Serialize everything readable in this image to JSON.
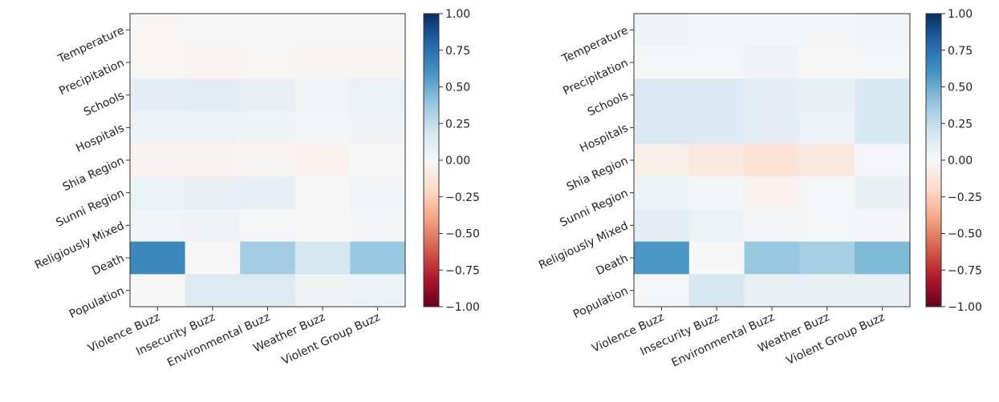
{
  "chart_data": [
    {
      "type": "heatmap",
      "title": "",
      "xlabel": "",
      "ylabel": "",
      "x_categories": [
        "Violence Buzz",
        "Insecurity Buzz",
        "Environmental Buzz",
        "Weather Buzz",
        "Violent Group Buzz"
      ],
      "y_categories": [
        "Temperature",
        "Precipitation",
        "Schools",
        "Hospitals",
        "Shia Region",
        "Sunni Region",
        "Religiously Mixed",
        "Death",
        "Population"
      ],
      "values": [
        [
          -0.01,
          0.0,
          0.0,
          0.0,
          0.0
        ],
        [
          -0.01,
          -0.02,
          -0.01,
          -0.02,
          -0.02
        ],
        [
          0.1,
          0.11,
          0.08,
          0.03,
          0.07
        ],
        [
          0.06,
          0.06,
          0.05,
          0.02,
          0.04
        ],
        [
          -0.03,
          -0.03,
          -0.02,
          -0.04,
          0.0
        ],
        [
          0.07,
          0.08,
          0.09,
          0.0,
          0.03
        ],
        [
          0.03,
          0.04,
          0.01,
          0.0,
          0.02
        ],
        [
          0.65,
          0.0,
          0.35,
          0.18,
          0.38
        ],
        [
          0.0,
          0.14,
          0.14,
          0.04,
          0.06
        ]
      ],
      "colorscale": "RdBu",
      "vmin": -1.0,
      "vmax": 1.0,
      "colorbar_ticks": [
        "1.00",
        "0.75",
        "0.50",
        "0.25",
        "0.00",
        "−0.25",
        "−0.50",
        "−0.75",
        "−1.00"
      ],
      "colorbar_values": [
        1.0,
        0.75,
        0.5,
        0.25,
        0.0,
        -0.25,
        -0.5,
        -0.75,
        -1.0
      ]
    },
    {
      "type": "heatmap",
      "title": "",
      "xlabel": "",
      "ylabel": "",
      "x_categories": [
        "Violence Buzz",
        "Insecurity Buzz",
        "Environmental Buzz",
        "Weather Buzz",
        "Violent Group Buzz"
      ],
      "y_categories": [
        "Temperature",
        "Precipitation",
        "Schools",
        "Hospitals",
        "Shia Region",
        "Sunni Region",
        "Religiously Mixed",
        "Death",
        "Population"
      ],
      "values": [
        [
          0.04,
          0.02,
          0.02,
          0.02,
          0.03
        ],
        [
          0.01,
          0.01,
          0.04,
          0.0,
          0.01
        ],
        [
          0.15,
          0.15,
          0.1,
          0.08,
          0.16
        ],
        [
          0.15,
          0.15,
          0.1,
          0.06,
          0.16
        ],
        [
          -0.06,
          -0.1,
          -0.14,
          -0.1,
          0.01
        ],
        [
          0.05,
          0.02,
          -0.04,
          0.01,
          0.08
        ],
        [
          0.1,
          0.06,
          0.02,
          0.01,
          0.02
        ],
        [
          0.58,
          0.0,
          0.38,
          0.33,
          0.45
        ],
        [
          0.01,
          0.17,
          0.08,
          0.08,
          0.08
        ]
      ],
      "colorscale": "RdBu",
      "vmin": -1.0,
      "vmax": 1.0,
      "colorbar_ticks": [
        "1.00",
        "0.75",
        "0.50",
        "0.25",
        "0.00",
        "−0.25",
        "−0.50",
        "−0.75",
        "−1.00"
      ],
      "colorbar_values": [
        1.0,
        0.75,
        0.5,
        0.25,
        0.0,
        -0.25,
        -0.5,
        -0.75,
        -1.0
      ]
    }
  ]
}
